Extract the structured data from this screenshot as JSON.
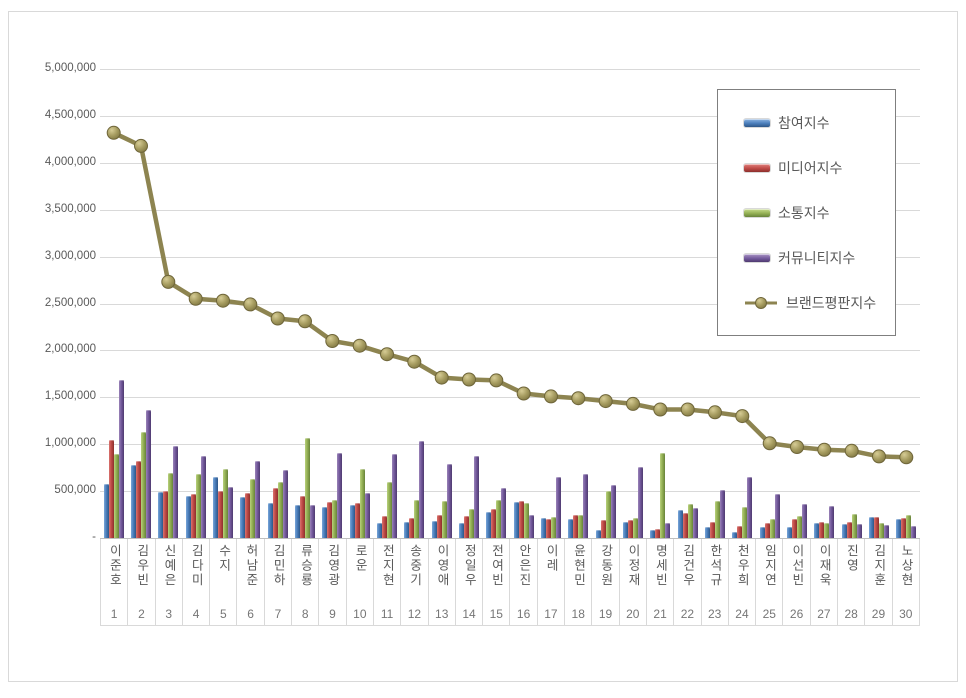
{
  "colors": {
    "background": "#ffffff",
    "frame_border": "#d9d9d9",
    "grid": "#d9d9d9",
    "axis_text": "#595959",
    "rank_text": "#767676",
    "legend_border": "#7f7f7f",
    "line_stroke": "#8d8450",
    "marker_fill": "#a79d61",
    "marker_stroke": "#6e6539"
  },
  "chart_data": {
    "type": "bar",
    "subtype": "clustered-bars-with-line-overlay",
    "title": "",
    "xlabel": "",
    "ylabel": "",
    "grid": true,
    "legend_position": "upper-right-overlay",
    "ylim": [
      0,
      5000000
    ],
    "yticks": {
      "values": [
        0,
        500000,
        1000000,
        1500000,
        2000000,
        2500000,
        3000000,
        3500000,
        4000000,
        4500000,
        5000000
      ],
      "labels": [
        "-",
        "500,000",
        "1,000,000",
        "1,500,000",
        "2,000,000",
        "2,500,000",
        "3,000,000",
        "3,500,000",
        "4,000,000",
        "4,500,000",
        "5,000,000"
      ]
    },
    "categories": [
      "이준호",
      "김우빈",
      "신예은",
      "김다미",
      "수지",
      "허남준",
      "김민하",
      "류승룡",
      "김영광",
      "로운",
      "전지현",
      "송중기",
      "이영애",
      "정일우",
      "전여빈",
      "안은진",
      "이레",
      "윤현민",
      "강동원",
      "이정재",
      "명세빈",
      "김건우",
      "한석규",
      "천우희",
      "임지연",
      "이선빈",
      "이재욱",
      "진영",
      "김지훈",
      "노상현"
    ],
    "ranks": [
      1,
      2,
      3,
      4,
      5,
      6,
      7,
      8,
      9,
      10,
      11,
      12,
      13,
      14,
      15,
      16,
      17,
      18,
      19,
      20,
      21,
      22,
      23,
      24,
      25,
      26,
      27,
      28,
      29,
      30
    ],
    "series": [
      {
        "name": "참여지수",
        "type": "bar",
        "color": "#4a7ebb",
        "values": [
          580000,
          780000,
          490000,
          450000,
          650000,
          440000,
          370000,
          350000,
          330000,
          350000,
          160000,
          170000,
          180000,
          160000,
          280000,
          380000,
          210000,
          200000,
          90000,
          170000,
          90000,
          300000,
          120000,
          60000,
          120000,
          120000,
          160000,
          150000,
          220000,
          200000
        ]
      },
      {
        "name": "미디어지수",
        "type": "bar",
        "color": "#bf4a47",
        "values": [
          1050000,
          820000,
          500000,
          470000,
          500000,
          480000,
          530000,
          450000,
          380000,
          370000,
          230000,
          210000,
          240000,
          230000,
          310000,
          390000,
          200000,
          240000,
          190000,
          190000,
          100000,
          270000,
          170000,
          130000,
          160000,
          200000,
          170000,
          170000,
          220000,
          210000
        ]
      },
      {
        "name": "소통지수",
        "type": "bar",
        "color": "#94b054",
        "values": [
          900000,
          1130000,
          690000,
          680000,
          740000,
          630000,
          600000,
          1070000,
          400000,
          740000,
          600000,
          410000,
          390000,
          310000,
          410000,
          370000,
          220000,
          250000,
          500000,
          210000,
          910000,
          360000,
          390000,
          330000,
          200000,
          230000,
          160000,
          260000,
          160000,
          240000
        ]
      },
      {
        "name": "커뮤니티지수",
        "type": "bar",
        "color": "#745a9d",
        "values": [
          1680000,
          1360000,
          980000,
          870000,
          540000,
          820000,
          730000,
          350000,
          910000,
          480000,
          900000,
          1030000,
          790000,
          870000,
          530000,
          240000,
          650000,
          680000,
          560000,
          760000,
          160000,
          320000,
          510000,
          650000,
          470000,
          360000,
          340000,
          150000,
          140000,
          130000
        ]
      },
      {
        "name": "브랜드평판지수",
        "type": "line",
        "color": "#8d8450",
        "values": [
          4320000,
          4180000,
          2730000,
          2550000,
          2530000,
          2490000,
          2340000,
          2310000,
          2100000,
          2050000,
          1960000,
          1880000,
          1710000,
          1690000,
          1680000,
          1540000,
          1510000,
          1490000,
          1460000,
          1430000,
          1370000,
          1370000,
          1340000,
          1300000,
          1010000,
          970000,
          940000,
          930000,
          870000,
          860000
        ]
      }
    ]
  }
}
